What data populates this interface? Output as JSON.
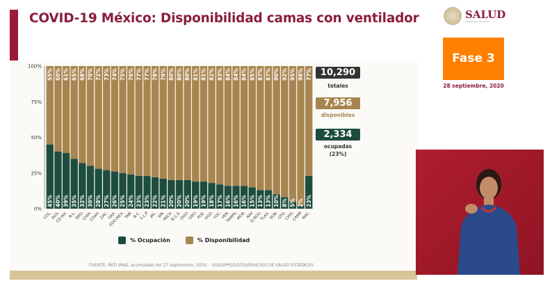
{
  "header": {
    "title": "COVID-19 México: Disponibilidad camas con ventilador"
  },
  "logo": {
    "text": "SALUD",
    "subtext": "SECRETARÍA DE SALUD"
  },
  "phase": {
    "label": "Fase 3",
    "date": "28 septiembre, 2020"
  },
  "stats": {
    "total": {
      "value": "10,290",
      "label": "totales",
      "color": "#333333"
    },
    "available": {
      "value": "7,956",
      "label": "disponibles",
      "color": "#a88550"
    },
    "occupied": {
      "value": "2,334",
      "label": "ocupadas",
      "pct": "(23%)",
      "color": "#1e4d3f"
    }
  },
  "legend": {
    "occupied": "% Ocupación",
    "available": "% Disponibilidad"
  },
  "source": "FUENTE: RED IRAG, acumulado del 27 septiembre, 2020. -  SSA/SPPS/DGTI/SERVICIOS DE SALUD ESTATALES",
  "chart_data": {
    "type": "bar",
    "stacked": true,
    "ylim": [
      0,
      100
    ],
    "yticks": [
      "0%",
      "25%",
      "50%",
      "75%",
      "100%"
    ],
    "categories": [
      "COL.",
      "AGS.",
      "CD.MX.",
      "N.L.",
      "QRO.",
      "CHIH.",
      "COAH.",
      "ZAC.",
      "OAX.",
      "EDO.MEX.",
      "TAB.",
      "B.C.",
      "S.L.P.",
      "JAL.",
      "SIN.",
      "MICH.",
      "B.C.S.",
      "DGO.",
      "GRO.",
      "PUE.",
      "HGO.",
      "YUC.",
      "VER.",
      "TAMPS.",
      "MOR.",
      "NAY.",
      "Q.ROO.",
      "TLAX.",
      "SON.",
      "GTO.",
      "CHIS.",
      "CAMP.",
      "NAC."
    ],
    "series": [
      {
        "name": "% Ocupación",
        "color": "#1e4d3f",
        "values": [
          45,
          40,
          39,
          35,
          32,
          30,
          28,
          27,
          26,
          25,
          24,
          23,
          23,
          22,
          21,
          20,
          20,
          20,
          19,
          19,
          18,
          17,
          16,
          16,
          16,
          15,
          13,
          13,
          10,
          8,
          5,
          2,
          23
        ]
      },
      {
        "name": "% Disponibilidad",
        "color": "#a88550",
        "values": [
          55,
          60,
          61,
          65,
          68,
          70,
          72,
          73,
          74,
          75,
          76,
          77,
          77,
          78,
          79,
          80,
          80,
          80,
          81,
          81,
          82,
          83,
          84,
          84,
          84,
          85,
          87,
          87,
          90,
          92,
          95,
          98,
          77
        ]
      }
    ]
  }
}
